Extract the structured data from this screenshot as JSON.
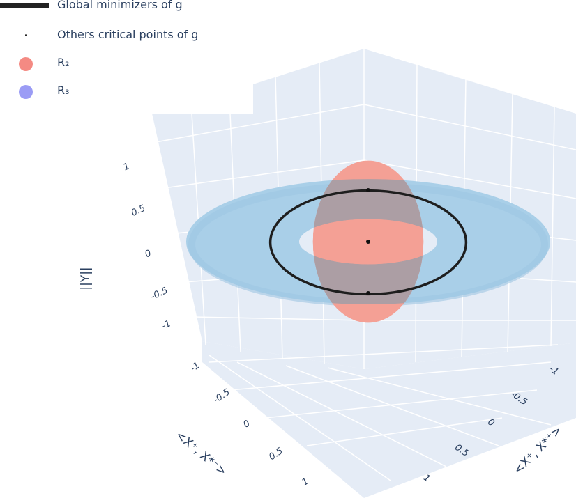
{
  "chart_data": {
    "type": "scatter3d",
    "legend": [
      {
        "name": "Global minimizers of g",
        "symbol": "line",
        "color": "#222222"
      },
      {
        "name": "Others critical points of g",
        "symbol": "dot",
        "color": "#222222"
      },
      {
        "name": "R₂",
        "symbol": "circle",
        "color": "#f48a83"
      },
      {
        "name": "R₃",
        "symbol": "circle",
        "color": "#9b9cf5"
      }
    ],
    "axes": {
      "vertical": {
        "title": "||Y||",
        "range": [
          -1,
          1
        ],
        "ticks": [
          "1",
          "0.5",
          "0",
          "-0.5",
          "-1"
        ]
      },
      "left": {
        "title": "<X⁺, X*⁻>",
        "range": [
          -1,
          1
        ],
        "ticks": [
          "-1",
          "-0.5",
          "0",
          "0.5",
          "1"
        ]
      },
      "right": {
        "title": "<X⁺, X*⁺>",
        "range": [
          -1,
          1
        ],
        "ticks": [
          "-1",
          "-0.5",
          "0",
          "0.5",
          "1"
        ]
      }
    },
    "series": [
      {
        "name": "Global minimizers of g",
        "kind": "circle",
        "z": 0,
        "radius": 1
      },
      {
        "name": "Others critical points of g",
        "points": [
          [
            0,
            0,
            1
          ],
          [
            0,
            0,
            0
          ],
          [
            0,
            0,
            -1
          ]
        ]
      },
      {
        "name": "R₂",
        "kind": "ellipsoid",
        "semi_axes": [
          0.5,
          0.5,
          1.3
        ]
      },
      {
        "name": "R₃",
        "kind": "torus",
        "major_radius": 1,
        "minor_radius": 0.45
      }
    ],
    "background": "#e5ecf6",
    "grid": true,
    "legend_position": "top-left"
  }
}
